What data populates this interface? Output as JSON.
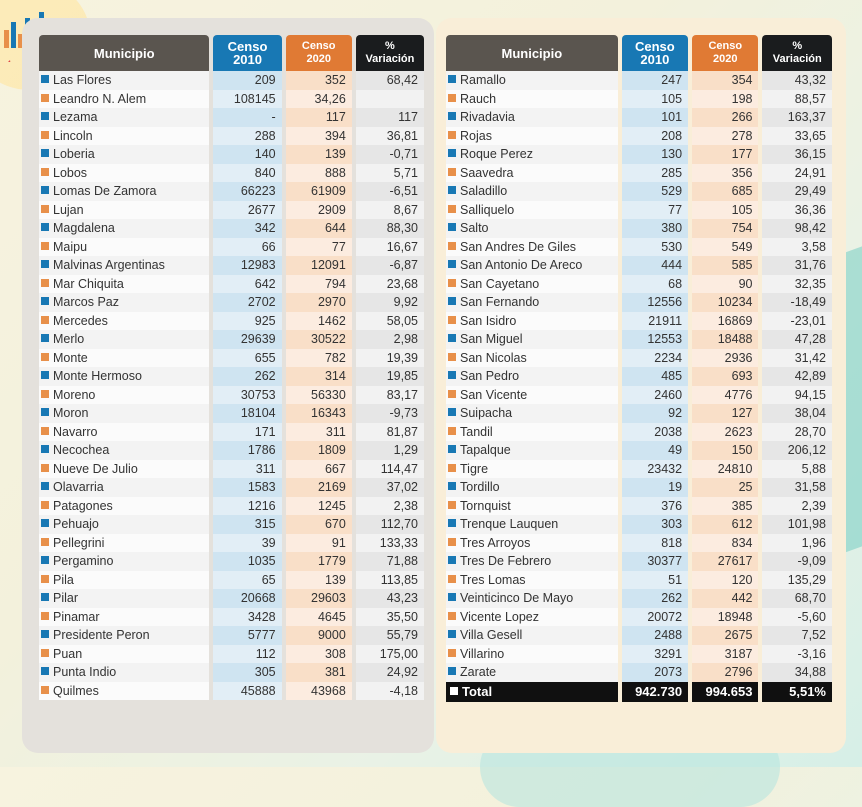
{
  "headers": {
    "municipio": "Municipio",
    "censo2010": [
      "Censo",
      "2010"
    ],
    "censo2020": [
      "Censo",
      "2020"
    ],
    "variacion": [
      "%",
      "Variación"
    ]
  },
  "left_rows": [
    {
      "name": "Las Flores",
      "c2010": "209",
      "c2020": "352",
      "var": "68,42",
      "mark": "blue"
    },
    {
      "name": "Leandro N. Alem",
      "c2010": "108145",
      "c2020": "34,26",
      "var": "",
      "mark": "orange"
    },
    {
      "name": "Lezama",
      "c2010": "-",
      "c2020": "117",
      "var": "117",
      "mark": "blue"
    },
    {
      "name": "Lincoln",
      "c2010": "288",
      "c2020": "394",
      "var": "36,81",
      "mark": "orange"
    },
    {
      "name": "Loberia",
      "c2010": "140",
      "c2020": "139",
      "var": "-0,71",
      "mark": "blue"
    },
    {
      "name": "Lobos",
      "c2010": "840",
      "c2020": "888",
      "var": "5,71",
      "mark": "orange"
    },
    {
      "name": "Lomas De Zamora",
      "c2010": "66223",
      "c2020": "61909",
      "var": "-6,51",
      "mark": "blue"
    },
    {
      "name": "Lujan",
      "c2010": "2677",
      "c2020": "2909",
      "var": "8,67",
      "mark": "orange"
    },
    {
      "name": "Magdalena",
      "c2010": "342",
      "c2020": "644",
      "var": "88,30",
      "mark": "blue"
    },
    {
      "name": "Maipu",
      "c2010": "66",
      "c2020": "77",
      "var": "16,67",
      "mark": "orange"
    },
    {
      "name": "Malvinas Argentinas",
      "c2010": "12983",
      "c2020": "12091",
      "var": "-6,87",
      "mark": "blue"
    },
    {
      "name": "Mar Chiquita",
      "c2010": "642",
      "c2020": "794",
      "var": "23,68",
      "mark": "orange"
    },
    {
      "name": "Marcos Paz",
      "c2010": "2702",
      "c2020": "2970",
      "var": "9,92",
      "mark": "blue"
    },
    {
      "name": "Mercedes",
      "c2010": "925",
      "c2020": "1462",
      "var": "58,05",
      "mark": "orange"
    },
    {
      "name": "Merlo",
      "c2010": "29639",
      "c2020": "30522",
      "var": "2,98",
      "mark": "blue"
    },
    {
      "name": "Monte",
      "c2010": "655",
      "c2020": "782",
      "var": "19,39",
      "mark": "orange"
    },
    {
      "name": "Monte Hermoso",
      "c2010": "262",
      "c2020": "314",
      "var": "19,85",
      "mark": "blue"
    },
    {
      "name": "Moreno",
      "c2010": "30753",
      "c2020": "56330",
      "var": "83,17",
      "mark": "orange"
    },
    {
      "name": "Moron",
      "c2010": "18104",
      "c2020": "16343",
      "var": "-9,73",
      "mark": "blue"
    },
    {
      "name": "Navarro",
      "c2010": "171",
      "c2020": "311",
      "var": "81,87",
      "mark": "orange"
    },
    {
      "name": "Necochea",
      "c2010": "1786",
      "c2020": "1809",
      "var": "1,29",
      "mark": "blue"
    },
    {
      "name": "Nueve De Julio",
      "c2010": "311",
      "c2020": "667",
      "var": "114,47",
      "mark": "orange"
    },
    {
      "name": "Olavarria",
      "c2010": "1583",
      "c2020": "2169",
      "var": "37,02",
      "mark": "blue"
    },
    {
      "name": "Patagones",
      "c2010": "1216",
      "c2020": "1245",
      "var": "2,38",
      "mark": "orange"
    },
    {
      "name": "Pehuajo",
      "c2010": "315",
      "c2020": "670",
      "var": "112,70",
      "mark": "blue"
    },
    {
      "name": "Pellegrini",
      "c2010": "39",
      "c2020": "91",
      "var": "133,33",
      "mark": "orange"
    },
    {
      "name": "Pergamino",
      "c2010": "1035",
      "c2020": "1779",
      "var": "71,88",
      "mark": "blue"
    },
    {
      "name": "Pila",
      "c2010": "65",
      "c2020": "139",
      "var": "113,85",
      "mark": "orange"
    },
    {
      "name": "Pilar",
      "c2010": "20668",
      "c2020": "29603",
      "var": "43,23",
      "mark": "blue"
    },
    {
      "name": "Pinamar",
      "c2010": "3428",
      "c2020": "4645",
      "var": "35,50",
      "mark": "orange"
    },
    {
      "name": "Presidente Peron",
      "c2010": "5777",
      "c2020": "9000",
      "var": "55,79",
      "mark": "blue"
    },
    {
      "name": "Puan",
      "c2010": "112",
      "c2020": "308",
      "var": "175,00",
      "mark": "orange"
    },
    {
      "name": "Punta Indio",
      "c2010": "305",
      "c2020": "381",
      "var": "24,92",
      "mark": "blue"
    },
    {
      "name": "Quilmes",
      "c2010": "45888",
      "c2020": "43968",
      "var": "-4,18",
      "mark": "orange"
    }
  ],
  "right_rows": [
    {
      "name": "Ramallo",
      "c2010": "247",
      "c2020": "354",
      "var": "43,32",
      "mark": "blue"
    },
    {
      "name": "Rauch",
      "c2010": "105",
      "c2020": "198",
      "var": "88,57",
      "mark": "orange"
    },
    {
      "name": "Rivadavia",
      "c2010": "101",
      "c2020": "266",
      "var": "163,37",
      "mark": "blue"
    },
    {
      "name": "Rojas",
      "c2010": "208",
      "c2020": "278",
      "var": "33,65",
      "mark": "orange"
    },
    {
      "name": "Roque Perez",
      "c2010": "130",
      "c2020": "177",
      "var": "36,15",
      "mark": "blue"
    },
    {
      "name": "Saavedra",
      "c2010": "285",
      "c2020": "356",
      "var": "24,91",
      "mark": "orange"
    },
    {
      "name": "Saladillo",
      "c2010": "529",
      "c2020": "685",
      "var": "29,49",
      "mark": "blue"
    },
    {
      "name": "Salliquelo",
      "c2010": "77",
      "c2020": "105",
      "var": "36,36",
      "mark": "orange"
    },
    {
      "name": "Salto",
      "c2010": "380",
      "c2020": "754",
      "var": "98,42",
      "mark": "blue"
    },
    {
      "name": "San Andres De Giles",
      "c2010": "530",
      "c2020": "549",
      "var": "3,58",
      "mark": "orange"
    },
    {
      "name": "San Antonio De Areco",
      "c2010": "444",
      "c2020": "585",
      "var": "31,76",
      "mark": "blue"
    },
    {
      "name": "San Cayetano",
      "c2010": "68",
      "c2020": "90",
      "var": "32,35",
      "mark": "orange"
    },
    {
      "name": "San Fernando",
      "c2010": "12556",
      "c2020": "10234",
      "var": "-18,49",
      "mark": "blue"
    },
    {
      "name": "San Isidro",
      "c2010": "21911",
      "c2020": "16869",
      "var": "-23,01",
      "mark": "orange"
    },
    {
      "name": "San Miguel",
      "c2010": "12553",
      "c2020": "18488",
      "var": "47,28",
      "mark": "blue"
    },
    {
      "name": "San Nicolas",
      "c2010": "2234",
      "c2020": "2936",
      "var": "31,42",
      "mark": "orange"
    },
    {
      "name": "San Pedro",
      "c2010": "485",
      "c2020": "693",
      "var": "42,89",
      "mark": "blue"
    },
    {
      "name": "San Vicente",
      "c2010": "2460",
      "c2020": "4776",
      "var": "94,15",
      "mark": "orange"
    },
    {
      "name": "Suipacha",
      "c2010": "92",
      "c2020": "127",
      "var": "38,04",
      "mark": "blue"
    },
    {
      "name": "Tandil",
      "c2010": "2038",
      "c2020": "2623",
      "var": "28,70",
      "mark": "orange"
    },
    {
      "name": "Tapalque",
      "c2010": "49",
      "c2020": "150",
      "var": "206,12",
      "mark": "blue"
    },
    {
      "name": "Tigre",
      "c2010": "23432",
      "c2020": "24810",
      "var": "5,88",
      "mark": "orange"
    },
    {
      "name": "Tordillo",
      "c2010": "19",
      "c2020": "25",
      "var": "31,58",
      "mark": "blue"
    },
    {
      "name": "Tornquist",
      "c2010": "376",
      "c2020": "385",
      "var": "2,39",
      "mark": "orange"
    },
    {
      "name": "Trenque Lauquen",
      "c2010": "303",
      "c2020": "612",
      "var": "101,98",
      "mark": "blue"
    },
    {
      "name": "Tres Arroyos",
      "c2010": "818",
      "c2020": "834",
      "var": "1,96",
      "mark": "orange"
    },
    {
      "name": "Tres De Febrero",
      "c2010": "30377",
      "c2020": "27617",
      "var": "-9,09",
      "mark": "blue"
    },
    {
      "name": "Tres Lomas",
      "c2010": "51",
      "c2020": "120",
      "var": "135,29",
      "mark": "orange"
    },
    {
      "name": "Veinticinco De Mayo",
      "c2010": "262",
      "c2020": "442",
      "var": "68,70",
      "mark": "blue"
    },
    {
      "name": "Vicente Lopez",
      "c2010": "20072",
      "c2020": "18948",
      "var": "-5,60",
      "mark": "orange"
    },
    {
      "name": "Villa Gesell",
      "c2010": "2488",
      "c2020": "2675",
      "var": "7,52",
      "mark": "blue"
    },
    {
      "name": "Villarino",
      "c2010": "3291",
      "c2020": "3187",
      "var": "-3,16",
      "mark": "orange"
    },
    {
      "name": "Zarate",
      "c2010": "2073",
      "c2020": "2796",
      "var": "34,88",
      "mark": "blue"
    }
  ],
  "total": {
    "label": "Total",
    "c2010": "942.730",
    "c2020": "994.653",
    "var": "5,51%"
  },
  "colors": {
    "blue": "#1878b4",
    "orange": "#e07a34",
    "dark": "#1a1c1e",
    "header_gray": "#5a554f"
  }
}
